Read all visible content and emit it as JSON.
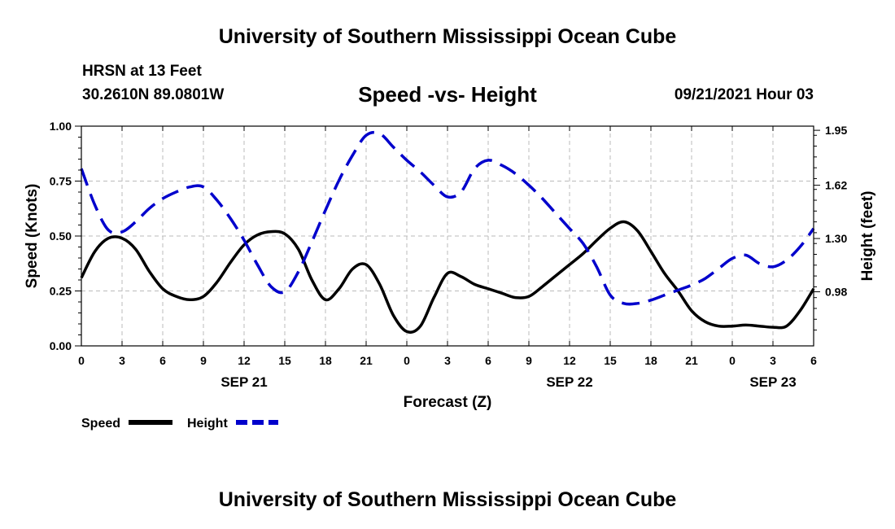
{
  "header": {
    "title": "University of Southern Mississippi Ocean Cube",
    "footer_title": "University of Southern Mississippi Ocean Cube",
    "station": "HRSN at 13 Feet",
    "coords": "30.2610N  89.0801W",
    "date": "09/21/2021 Hour 03"
  },
  "colors": {
    "speed": "#000000",
    "height": "#0000cc",
    "grid": "#bbbbbb"
  },
  "chart_data": {
    "type": "line",
    "title": "Speed -vs- Height",
    "xlabel": "Forecast (Z)",
    "ylabel": "Speed (Knots)",
    "y2label": "Height (feet)",
    "xlim": [
      0,
      54
    ],
    "ylim": [
      0,
      1
    ],
    "y2lim": [
      0.655,
      1.975
    ],
    "x_tick_values": [
      0,
      3,
      6,
      9,
      12,
      15,
      18,
      21,
      24,
      27,
      30,
      33,
      36,
      39,
      42,
      45,
      48,
      51,
      54
    ],
    "x_tick_labels": [
      "0",
      "3",
      "6",
      "9",
      "12",
      "15",
      "18",
      "21",
      "0",
      "3",
      "6",
      "9",
      "12",
      "15",
      "18",
      "21",
      "0",
      "3",
      "6"
    ],
    "date_labels": [
      {
        "x": 12,
        "label": "SEP 21"
      },
      {
        "x": 36,
        "label": "SEP 22"
      },
      {
        "x": 51,
        "label": "SEP 23"
      }
    ],
    "y_ticks": [
      0,
      0.25,
      0.5,
      0.75,
      1
    ],
    "y_tick_labels": [
      "0.00",
      "0.25",
      "0.50",
      "0.75",
      "1.00"
    ],
    "y2_ticks": [
      0.98,
      1.3,
      1.62,
      1.95
    ],
    "y2_tick_labels": [
      "0.98",
      "1.30",
      "1.62",
      "1.95"
    ],
    "grid": true,
    "legend": "bottom-left",
    "series": [
      {
        "name": "Speed",
        "axis": "left",
        "style": "solid",
        "x": [
          0,
          1,
          2,
          3,
          4,
          5,
          6,
          7,
          8,
          9,
          10,
          11,
          12,
          13,
          14,
          15,
          16,
          17,
          18,
          19,
          20,
          21,
          22,
          23,
          24,
          25,
          26,
          27,
          28,
          29,
          30,
          31,
          32,
          33,
          34,
          35,
          36,
          37,
          38,
          39,
          40,
          41,
          42,
          43,
          44,
          45,
          46,
          47,
          48,
          49,
          50,
          51,
          52,
          53,
          54
        ],
        "y": [
          0.31,
          0.43,
          0.49,
          0.49,
          0.44,
          0.34,
          0.26,
          0.225,
          0.21,
          0.225,
          0.29,
          0.38,
          0.46,
          0.505,
          0.52,
          0.51,
          0.44,
          0.3,
          0.21,
          0.26,
          0.35,
          0.37,
          0.28,
          0.14,
          0.065,
          0.09,
          0.22,
          0.33,
          0.315,
          0.28,
          0.26,
          0.24,
          0.22,
          0.225,
          0.27,
          0.32,
          0.37,
          0.42,
          0.48,
          0.535,
          0.565,
          0.525,
          0.43,
          0.33,
          0.25,
          0.16,
          0.11,
          0.09,
          0.09,
          0.095,
          0.09,
          0.085,
          0.09,
          0.16,
          0.26
        ]
      },
      {
        "name": "Height",
        "axis": "right",
        "style": "dashed",
        "x": [
          0,
          1,
          2,
          3,
          4,
          5,
          6,
          7,
          8,
          9,
          10,
          11,
          12,
          13,
          14,
          15,
          16,
          17,
          18,
          19,
          20,
          21,
          22,
          23,
          24,
          25,
          26,
          27,
          28,
          29,
          30,
          31,
          32,
          33,
          34,
          35,
          36,
          37,
          38,
          39,
          40,
          41,
          42,
          43,
          44,
          45,
          46,
          47,
          48,
          49,
          50,
          51,
          52,
          53,
          54
        ],
        "y": [
          1.72,
          1.5,
          1.35,
          1.34,
          1.4,
          1.48,
          1.54,
          1.58,
          1.61,
          1.61,
          1.53,
          1.42,
          1.29,
          1.14,
          1.01,
          0.98,
          1.1,
          1.28,
          1.47,
          1.65,
          1.8,
          1.92,
          1.93,
          1.85,
          1.77,
          1.7,
          1.62,
          1.55,
          1.58,
          1.72,
          1.77,
          1.74,
          1.69,
          1.62,
          1.54,
          1.45,
          1.36,
          1.27,
          1.13,
          0.96,
          0.91,
          0.91,
          0.93,
          0.96,
          0.99,
          1.02,
          1.06,
          1.12,
          1.18,
          1.2,
          1.15,
          1.13,
          1.17,
          1.25,
          1.36
        ]
      }
    ]
  }
}
